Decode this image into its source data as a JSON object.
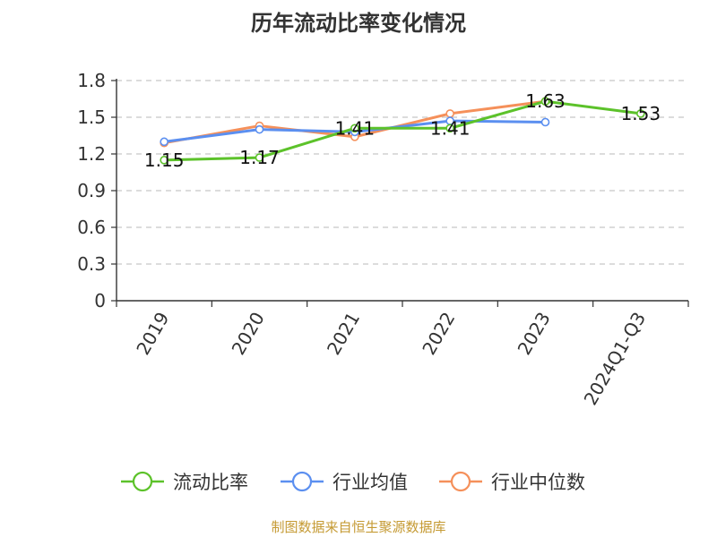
{
  "chart_data": {
    "type": "line",
    "title": "历年流动比率变化情况",
    "categories": [
      "2019",
      "2020",
      "2021",
      "2022",
      "2023",
      "2024Q1-Q3"
    ],
    "series": [
      {
        "name": "流动比率",
        "color": "#5cc22a",
        "values": [
          1.15,
          1.17,
          1.41,
          1.41,
          1.63,
          1.53
        ],
        "labels": [
          "1.15",
          "1.17",
          "1.41",
          "1.41",
          "1.63",
          "1.53"
        ]
      },
      {
        "name": "行业均值",
        "color": "#5b8ff0",
        "values": [
          1.3,
          1.4,
          1.38,
          1.47,
          1.46,
          null
        ]
      },
      {
        "name": "行业中位数",
        "color": "#f5905a",
        "values": [
          1.29,
          1.43,
          1.34,
          1.53,
          1.63,
          null
        ]
      }
    ],
    "ylim": [
      0,
      1.8
    ],
    "yticks": [
      "0",
      "0.3",
      "0.6",
      "0.9",
      "1.2",
      "1.5",
      "1.8"
    ],
    "grid": "horizontal-dashed",
    "legend_position": "bottom"
  },
  "source": "制图数据来自恒生聚源数据库"
}
